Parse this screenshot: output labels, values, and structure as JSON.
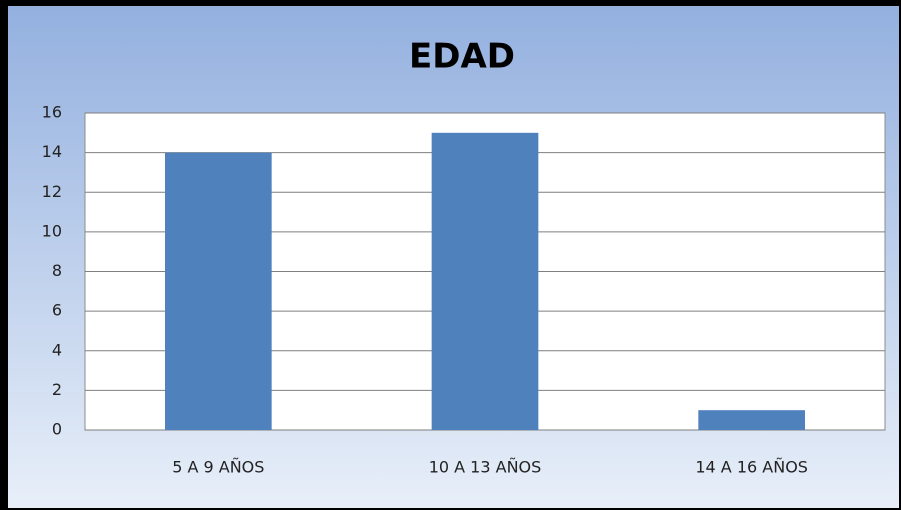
{
  "chart_data": {
    "type": "bar",
    "title": "EDAD",
    "categories": [
      "5 A 9 AÑOS",
      "10 A 13 AÑOS",
      "14 A 16 AÑOS"
    ],
    "values": [
      14,
      15,
      1
    ],
    "color": "#4f81bd",
    "ylim": [
      0,
      16
    ],
    "yticks": [
      0,
      2,
      4,
      6,
      8,
      10,
      12,
      14,
      16
    ],
    "grid": true
  }
}
